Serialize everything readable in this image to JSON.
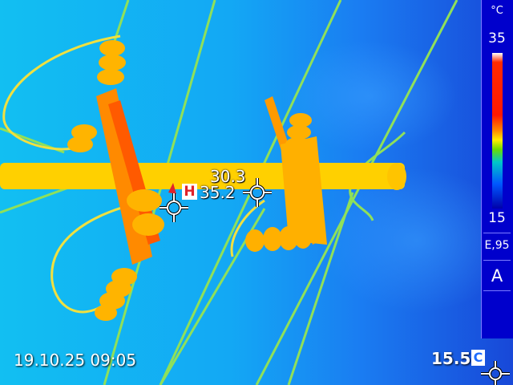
{
  "measurement": {
    "center_spot_value": "30.3",
    "hot_badge": "H",
    "hot_spot_value": "35.2"
  },
  "scale": {
    "unit": "°C",
    "max": "35",
    "min": "15",
    "emissivity": "E,95",
    "mode": "A"
  },
  "footer": {
    "datetime": "19.10.25 09:05",
    "reference_temp": "15.5",
    "reference_badge": "C"
  },
  "colors": {
    "sky": "#1b7bf5",
    "hot_object": "#ffd000",
    "hot_spot_marker": "#e0222a",
    "scale_panel": "#0000cc"
  }
}
